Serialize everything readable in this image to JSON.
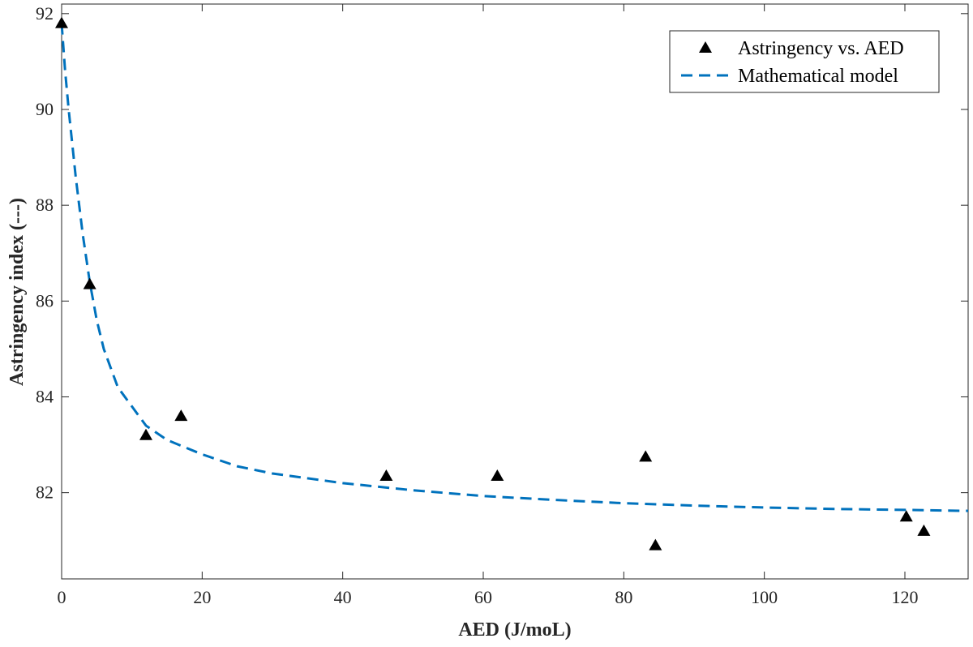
{
  "chart_data": {
    "type": "scatter",
    "title": "",
    "xlabel": "AED (J/moL)",
    "ylabel": "Astringency index (---)",
    "xlim": [
      0,
      129
    ],
    "ylim": [
      80.2,
      92.2
    ],
    "xticks": [
      0,
      20,
      40,
      60,
      80,
      100,
      120
    ],
    "yticks": [
      82,
      84,
      86,
      88,
      90,
      92
    ],
    "grid": false,
    "legend_position": "top-right",
    "series": [
      {
        "name": "Astringency vs. AED",
        "kind": "scatter",
        "marker": "triangle",
        "color": "#000000",
        "points": [
          {
            "x": 0,
            "y": 91.8
          },
          {
            "x": 4,
            "y": 86.35
          },
          {
            "x": 12,
            "y": 83.2
          },
          {
            "x": 17,
            "y": 83.6
          },
          {
            "x": 46.2,
            "y": 82.35
          },
          {
            "x": 62,
            "y": 82.35
          },
          {
            "x": 83.1,
            "y": 82.75
          },
          {
            "x": 84.5,
            "y": 80.9
          },
          {
            "x": 120.2,
            "y": 81.5
          },
          {
            "x": 122.7,
            "y": 81.2
          }
        ]
      },
      {
        "name": "Mathematical model",
        "kind": "line",
        "style": "dashed",
        "color": "#0072BD",
        "points": [
          {
            "x": 0,
            "y": 91.8
          },
          {
            "x": 0.5,
            "y": 90.8
          },
          {
            "x": 1,
            "y": 90.0
          },
          {
            "x": 2,
            "y": 88.6
          },
          {
            "x": 3,
            "y": 87.4
          },
          {
            "x": 4,
            "y": 86.4
          },
          {
            "x": 5,
            "y": 85.6
          },
          {
            "x": 6,
            "y": 85.0
          },
          {
            "x": 8,
            "y": 84.2
          },
          {
            "x": 10,
            "y": 83.8
          },
          {
            "x": 12,
            "y": 83.4
          },
          {
            "x": 15,
            "y": 83.1
          },
          {
            "x": 20,
            "y": 82.8
          },
          {
            "x": 25,
            "y": 82.55
          },
          {
            "x": 30,
            "y": 82.4
          },
          {
            "x": 40,
            "y": 82.2
          },
          {
            "x": 50,
            "y": 82.05
          },
          {
            "x": 60,
            "y": 81.93
          },
          {
            "x": 70,
            "y": 81.85
          },
          {
            "x": 80,
            "y": 81.78
          },
          {
            "x": 90,
            "y": 81.73
          },
          {
            "x": 100,
            "y": 81.69
          },
          {
            "x": 110,
            "y": 81.66
          },
          {
            "x": 120,
            "y": 81.64
          },
          {
            "x": 129,
            "y": 81.62
          }
        ]
      }
    ]
  }
}
